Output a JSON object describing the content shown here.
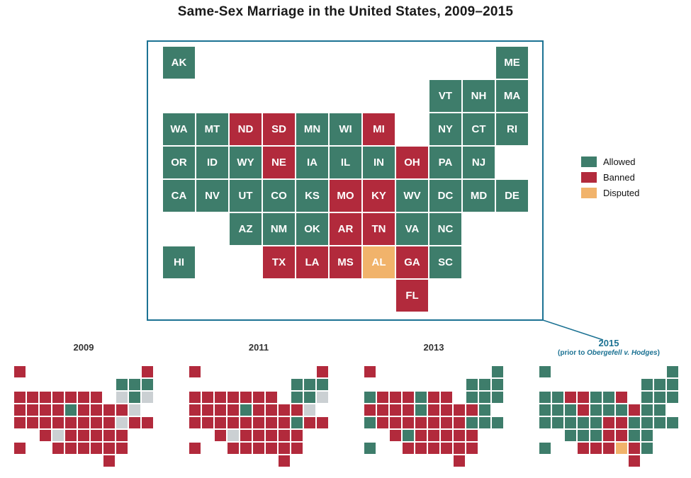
{
  "title": "Same-Sex Marriage in the United States, 2009–2015",
  "colors": {
    "allowed": "#3E7D6B",
    "banned": "#B22A3C",
    "disputed": "#F1B36B",
    "none": "#CBD0D3",
    "accent": "#1C7293"
  },
  "legend": {
    "items": [
      {
        "status": "allowed",
        "label": "Allowed"
      },
      {
        "status": "banned",
        "label": "Banned"
      },
      {
        "status": "disputed",
        "label": "Disputed"
      }
    ]
  },
  "grid": {
    "states": [
      {
        "abbr": "AK",
        "col": 1,
        "row": 1
      },
      {
        "abbr": "ME",
        "col": 11,
        "row": 1
      },
      {
        "abbr": "VT",
        "col": 9,
        "row": 2
      },
      {
        "abbr": "NH",
        "col": 10,
        "row": 2
      },
      {
        "abbr": "MA",
        "col": 11,
        "row": 2
      },
      {
        "abbr": "WA",
        "col": 1,
        "row": 3
      },
      {
        "abbr": "MT",
        "col": 2,
        "row": 3
      },
      {
        "abbr": "ND",
        "col": 3,
        "row": 3
      },
      {
        "abbr": "SD",
        "col": 4,
        "row": 3
      },
      {
        "abbr": "MN",
        "col": 5,
        "row": 3
      },
      {
        "abbr": "WI",
        "col": 6,
        "row": 3
      },
      {
        "abbr": "MI",
        "col": 7,
        "row": 3
      },
      {
        "abbr": "NY",
        "col": 9,
        "row": 3
      },
      {
        "abbr": "CT",
        "col": 10,
        "row": 3
      },
      {
        "abbr": "RI",
        "col": 11,
        "row": 3
      },
      {
        "abbr": "OR",
        "col": 1,
        "row": 4
      },
      {
        "abbr": "ID",
        "col": 2,
        "row": 4
      },
      {
        "abbr": "WY",
        "col": 3,
        "row": 4
      },
      {
        "abbr": "NE",
        "col": 4,
        "row": 4
      },
      {
        "abbr": "IA",
        "col": 5,
        "row": 4
      },
      {
        "abbr": "IL",
        "col": 6,
        "row": 4
      },
      {
        "abbr": "IN",
        "col": 7,
        "row": 4
      },
      {
        "abbr": "OH",
        "col": 8,
        "row": 4
      },
      {
        "abbr": "PA",
        "col": 9,
        "row": 4
      },
      {
        "abbr": "NJ",
        "col": 10,
        "row": 4
      },
      {
        "abbr": "CA",
        "col": 1,
        "row": 5
      },
      {
        "abbr": "NV",
        "col": 2,
        "row": 5
      },
      {
        "abbr": "UT",
        "col": 3,
        "row": 5
      },
      {
        "abbr": "CO",
        "col": 4,
        "row": 5
      },
      {
        "abbr": "KS",
        "col": 5,
        "row": 5
      },
      {
        "abbr": "MO",
        "col": 6,
        "row": 5
      },
      {
        "abbr": "KY",
        "col": 7,
        "row": 5
      },
      {
        "abbr": "WV",
        "col": 8,
        "row": 5
      },
      {
        "abbr": "DC",
        "col": 9,
        "row": 5
      },
      {
        "abbr": "MD",
        "col": 10,
        "row": 5
      },
      {
        "abbr": "DE",
        "col": 11,
        "row": 5
      },
      {
        "abbr": "AZ",
        "col": 3,
        "row": 6
      },
      {
        "abbr": "NM",
        "col": 4,
        "row": 6
      },
      {
        "abbr": "OK",
        "col": 5,
        "row": 6
      },
      {
        "abbr": "AR",
        "col": 6,
        "row": 6
      },
      {
        "abbr": "TN",
        "col": 7,
        "row": 6
      },
      {
        "abbr": "VA",
        "col": 8,
        "row": 6
      },
      {
        "abbr": "NC",
        "col": 9,
        "row": 6
      },
      {
        "abbr": "HI",
        "col": 1,
        "row": 7
      },
      {
        "abbr": "TX",
        "col": 4,
        "row": 7
      },
      {
        "abbr": "LA",
        "col": 5,
        "row": 7
      },
      {
        "abbr": "MS",
        "col": 6,
        "row": 7
      },
      {
        "abbr": "AL",
        "col": 7,
        "row": 7
      },
      {
        "abbr": "GA",
        "col": 8,
        "row": 7
      },
      {
        "abbr": "SC",
        "col": 9,
        "row": 7
      },
      {
        "abbr": "FL",
        "col": 8,
        "row": 8
      }
    ]
  },
  "main_map": {
    "default_status": "allowed",
    "overrides": {
      "banned": [
        "ND",
        "SD",
        "MI",
        "NE",
        "OH",
        "MO",
        "KY",
        "AR",
        "TN",
        "TX",
        "LA",
        "MS",
        "GA",
        "FL"
      ],
      "disputed": [
        "AL"
      ]
    }
  },
  "mini_maps": [
    {
      "id": "2009",
      "label": "2009",
      "default_status": "banned",
      "overrides": {
        "allowed": [
          "VT",
          "NH",
          "MA",
          "CT",
          "IA"
        ],
        "none": [
          "NY",
          "NJ",
          "RI",
          "NM",
          "DC"
        ]
      }
    },
    {
      "id": "2011",
      "label": "2011",
      "default_status": "banned",
      "overrides": {
        "allowed": [
          "VT",
          "NH",
          "MA",
          "CT",
          "NY",
          "IA",
          "DC"
        ],
        "none": [
          "NJ",
          "RI",
          "NM"
        ]
      }
    },
    {
      "id": "2013",
      "label": "2013",
      "default_status": "banned",
      "overrides": {
        "allowed": [
          "ME",
          "VT",
          "NH",
          "MA",
          "NY",
          "CT",
          "RI",
          "NJ",
          "DE",
          "MD",
          "DC",
          "WA",
          "MN",
          "IA",
          "CA",
          "NM",
          "HI"
        ]
      }
    },
    {
      "id": "2015",
      "label": "2015",
      "sub_prefix": "(prior to ",
      "sub_case": "Obergefell v. Hodges",
      "sub_suffix": ")",
      "default_status": "allowed",
      "overrides": {
        "banned": [
          "ND",
          "SD",
          "MI",
          "NE",
          "OH",
          "MO",
          "KY",
          "AR",
          "TN",
          "TX",
          "LA",
          "MS",
          "GA",
          "FL"
        ],
        "disputed": [
          "AL"
        ]
      }
    }
  ]
}
